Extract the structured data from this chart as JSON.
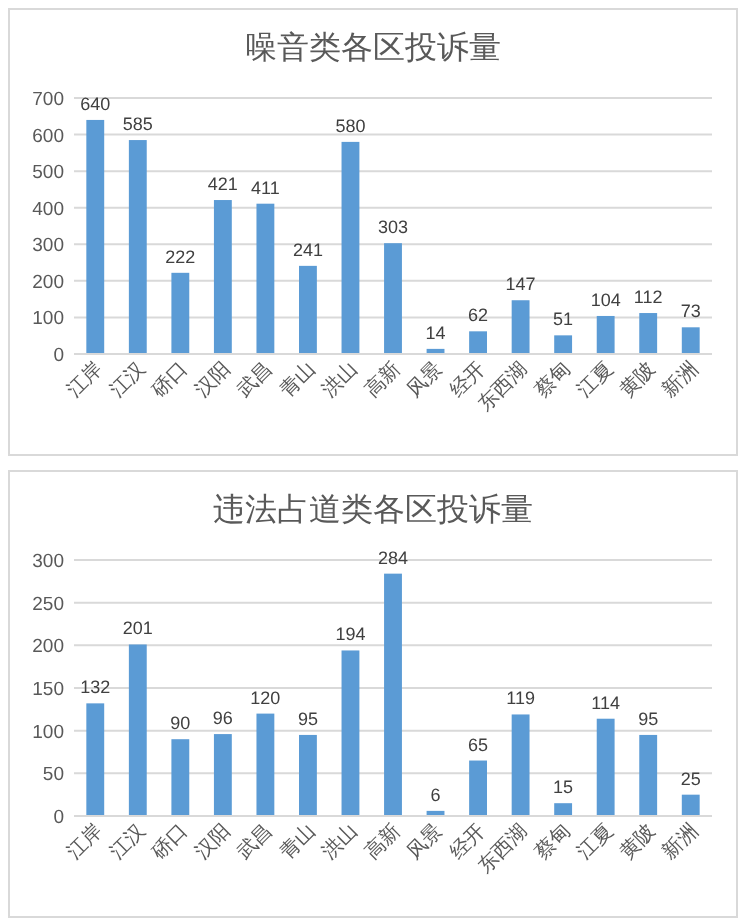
{
  "chart_data": [
    {
      "type": "bar",
      "title": "噪音类各区投诉量",
      "categories": [
        "江岸",
        "江汉",
        "硚口",
        "汉阳",
        "武昌",
        "青山",
        "洪山",
        "高新",
        "风景",
        "经开",
        "东西湖",
        "蔡甸",
        "江夏",
        "黄陂",
        "新洲"
      ],
      "values": [
        640,
        585,
        222,
        421,
        411,
        241,
        580,
        303,
        14,
        62,
        147,
        51,
        104,
        112,
        73
      ],
      "color": "#5b9bd5",
      "ylim": [
        0,
        700
      ],
      "yticks": [
        0,
        100,
        200,
        300,
        400,
        500,
        600,
        700
      ],
      "grid": "y",
      "data_labels": true
    },
    {
      "type": "bar",
      "title": "违法占道类各区投诉量",
      "categories": [
        "江岸",
        "江汉",
        "硚口",
        "汉阳",
        "武昌",
        "青山",
        "洪山",
        "高新",
        "风景",
        "经开",
        "东西湖",
        "蔡甸",
        "江夏",
        "黄陂",
        "新洲"
      ],
      "values": [
        132,
        201,
        90,
        96,
        120,
        95,
        194,
        284,
        6,
        65,
        119,
        15,
        114,
        95,
        25
      ],
      "color": "#5b9bd5",
      "ylim": [
        0,
        300
      ],
      "yticks": [
        0,
        50,
        100,
        150,
        200,
        250,
        300
      ],
      "grid": "y",
      "data_labels": true
    }
  ]
}
